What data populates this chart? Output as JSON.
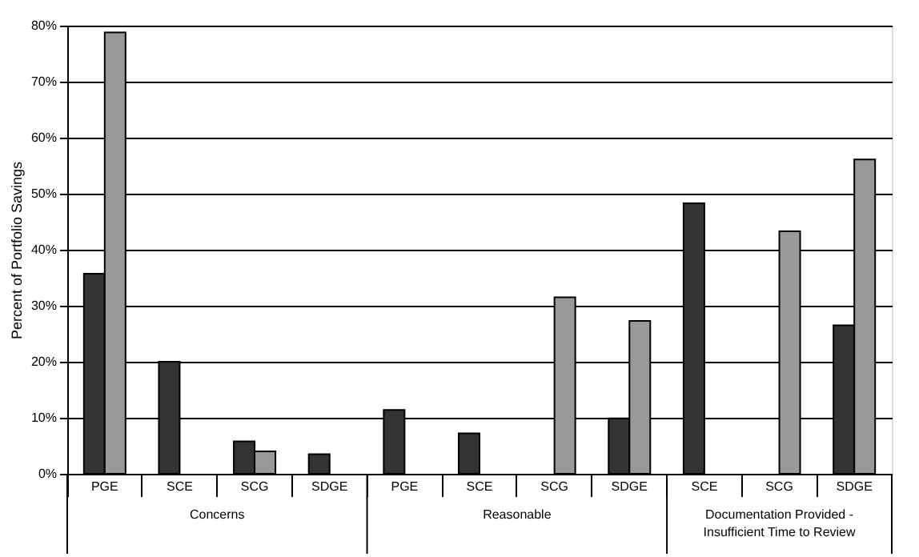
{
  "chart_data": {
    "type": "bar",
    "ylabel": "Percent of Portfolio Savings",
    "categories": [
      "PGE",
      "SCE",
      "SCG",
      "SDGE",
      "PGE",
      "SCE",
      "SCG",
      "SDGE",
      "SCE",
      "SCG",
      "SDGE"
    ],
    "series": [
      {
        "color": "#333333",
        "values": [
          35.7,
          20.0,
          5.8,
          3.5,
          11.4,
          7.2,
          null,
          9.9,
          48.3,
          null,
          26.5
        ]
      },
      {
        "color": "#999999",
        "values": [
          78.8,
          null,
          4.0,
          null,
          null,
          null,
          31.5,
          27.3,
          null,
          43.3,
          56.1
        ]
      }
    ],
    "ylim": [
      0,
      80
    ],
    "yticks": [
      {
        "value": 0,
        "label": "0%"
      },
      {
        "value": 10,
        "label": "10%"
      },
      {
        "value": 20,
        "label": "20%"
      },
      {
        "value": 30,
        "label": "30%"
      },
      {
        "value": 40,
        "label": "40%"
      },
      {
        "value": 50,
        "label": "50%"
      },
      {
        "value": 60,
        "label": "60%"
      },
      {
        "value": 70,
        "label": "70%"
      },
      {
        "value": 80,
        "label": "80%"
      }
    ],
    "grid": "y",
    "legend": false,
    "annotations": [
      "Concerns",
      "Reasonable",
      "Documentation Provided - Insufficient Time to Review"
    ]
  }
}
